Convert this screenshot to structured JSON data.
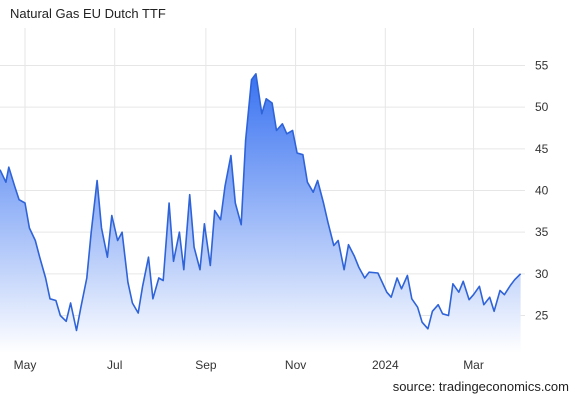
{
  "title": "Natural Gas EU Dutch TTF",
  "source": "source: tradingeconomics.com",
  "colors": {
    "line": "#2f63d8",
    "fill_top": "#2f6bf0",
    "fill_bottom": "#ffffff",
    "grid": "#e6e6e6"
  },
  "chart_data": {
    "type": "area",
    "title": "Natural Gas EU Dutch TTF",
    "xlabel": "",
    "ylabel": "",
    "grid": "horizontal",
    "ylim": [
      20.5,
      59.5
    ],
    "xlim": [
      "2023-04-14",
      "2024-04-05"
    ],
    "y_ticks": [
      25,
      30,
      35,
      40,
      45,
      50,
      55
    ],
    "x_ticks": [
      {
        "label": "May",
        "date": "2023-05-01"
      },
      {
        "label": "Jul",
        "date": "2023-07-01"
      },
      {
        "label": "Sep",
        "date": "2023-09-01"
      },
      {
        "label": "Nov",
        "date": "2023-11-01"
      },
      {
        "label": "2024",
        "date": "2024-01-01"
      },
      {
        "label": "Mar",
        "date": "2024-03-01"
      }
    ],
    "series": [
      {
        "x": [
          "2023-04-14",
          "2023-04-18",
          "2023-04-20",
          "2023-04-24",
          "2023-04-27",
          "2023-05-01",
          "2023-05-04",
          "2023-05-08",
          "2023-05-11",
          "2023-05-15",
          "2023-05-18",
          "2023-05-22",
          "2023-05-25",
          "2023-05-29",
          "2023-06-01",
          "2023-06-05",
          "2023-06-08",
          "2023-06-12",
          "2023-06-15",
          "2023-06-19",
          "2023-06-22",
          "2023-06-26",
          "2023-06-29",
          "2023-07-03",
          "2023-07-06",
          "2023-07-10",
          "2023-07-13",
          "2023-07-17",
          "2023-07-20",
          "2023-07-24",
          "2023-07-27",
          "2023-07-31",
          "2023-08-03",
          "2023-08-07",
          "2023-08-10",
          "2023-08-14",
          "2023-08-17",
          "2023-08-21",
          "2023-08-24",
          "2023-08-28",
          "2023-08-31",
          "2023-09-04",
          "2023-09-07",
          "2023-09-11",
          "2023-09-14",
          "2023-09-18",
          "2023-09-21",
          "2023-09-25",
          "2023-09-28",
          "2023-10-02",
          "2023-10-05",
          "2023-10-09",
          "2023-10-12",
          "2023-10-16",
          "2023-10-19",
          "2023-10-23",
          "2023-10-26",
          "2023-10-30",
          "2023-11-02",
          "2023-11-06",
          "2023-11-09",
          "2023-11-13",
          "2023-11-16",
          "2023-11-20",
          "2023-11-23",
          "2023-11-27",
          "2023-11-30",
          "2023-12-04",
          "2023-12-07",
          "2023-12-11",
          "2023-12-14",
          "2023-12-18",
          "2023-12-21",
          "2023-12-27",
          "2024-01-02",
          "2024-01-05",
          "2024-01-09",
          "2024-01-12",
          "2024-01-16",
          "2024-01-19",
          "2024-01-23",
          "2024-01-26",
          "2024-01-30",
          "2024-02-02",
          "2024-02-06",
          "2024-02-09",
          "2024-02-13",
          "2024-02-16",
          "2024-02-20",
          "2024-02-23",
          "2024-02-27",
          "2024-03-01",
          "2024-03-05",
          "2024-03-08",
          "2024-03-12",
          "2024-03-15",
          "2024-03-19",
          "2024-03-22",
          "2024-03-26",
          "2024-03-29",
          "2024-04-02"
        ],
        "y": [
          42.5,
          41,
          42.8,
          40.5,
          38.9,
          38.5,
          35.5,
          34,
          32,
          29.5,
          27,
          26.8,
          25,
          24.3,
          26.5,
          23.2,
          26,
          29.5,
          35,
          41.2,
          35.5,
          32,
          37,
          34,
          35,
          29,
          26.5,
          25.3,
          28.5,
          32,
          27,
          29.5,
          29.2,
          38.5,
          31.5,
          35,
          30.5,
          39.5,
          33.2,
          30.5,
          36,
          31,
          37.6,
          36.5,
          40.5,
          44.2,
          38.5,
          35.9,
          46,
          53.3,
          54,
          49.2,
          51,
          50.5,
          47.2,
          48,
          46.8,
          47.2,
          44.5,
          44.3,
          41,
          39.8,
          41.2,
          38.5,
          36.2,
          33.4,
          34,
          30.5,
          33.5,
          32.1,
          30.8,
          29.5,
          30.2,
          30.1,
          27.8,
          27.2,
          29.5,
          28.2,
          29.8,
          27,
          26,
          24.2,
          23.4,
          25.5,
          26.3,
          25.2,
          25,
          28.8,
          27.8,
          29.1,
          26.9,
          27.5,
          28.5,
          26.3,
          27.2,
          25.5,
          28,
          27.5,
          28.6,
          29.3,
          30
        ]
      }
    ]
  }
}
